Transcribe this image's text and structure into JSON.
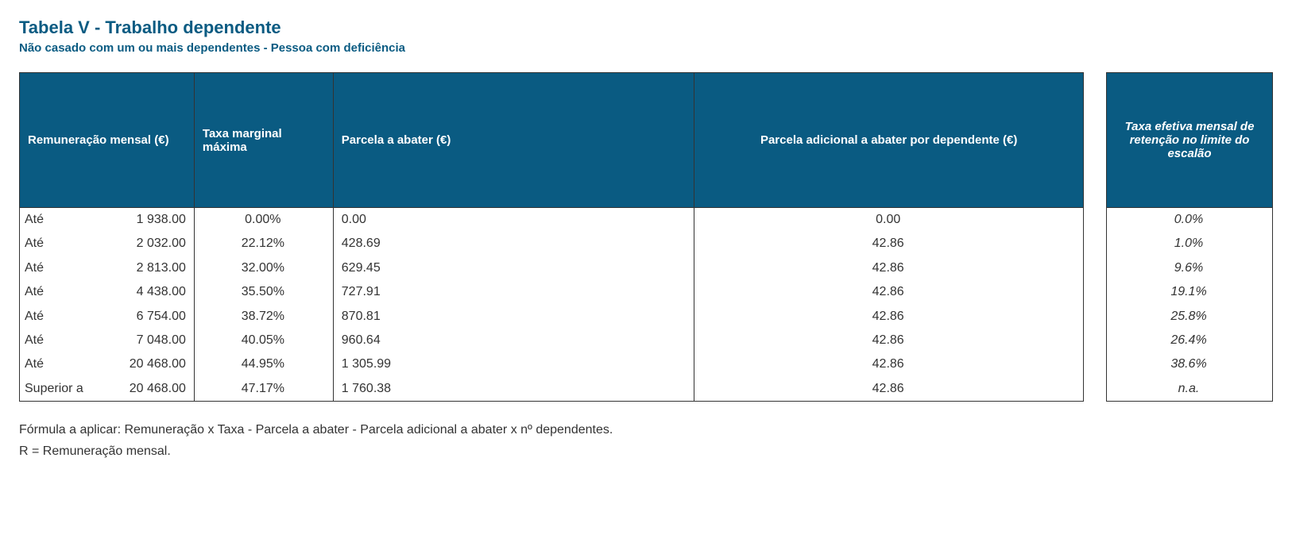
{
  "colors": {
    "accent": "#0a5b82",
    "text": "#333333",
    "border": "#333333",
    "header_text": "#ffffff",
    "background": "#ffffff"
  },
  "title": "Tabela V - Trabalho dependente",
  "subtitle": "Não casado com um ou mais dependentes - Pessoa com deficiência",
  "columns": {
    "remuneration": "Remuneração mensal (€)",
    "marginal_rate": "Taxa marginal máxima",
    "deduction": "Parcela a abater (€)",
    "dependent_deduction": "Parcela adicional a abater por dependente (€)",
    "effective_rate": "Taxa efetiva mensal de retenção no limite do escalão"
  },
  "rows": [
    {
      "label": "Até",
      "amount": "1 938.00",
      "rate": "0.00%",
      "parcel": "0.00",
      "dep": "0.00",
      "eff": "0.0%"
    },
    {
      "label": "Até",
      "amount": "2 032.00",
      "rate": "22.12%",
      "parcel": "428.69",
      "dep": "42.86",
      "eff": "1.0%"
    },
    {
      "label": "Até",
      "amount": "2 813.00",
      "rate": "32.00%",
      "parcel": "629.45",
      "dep": "42.86",
      "eff": "9.6%"
    },
    {
      "label": "Até",
      "amount": "4 438.00",
      "rate": "35.50%",
      "parcel": "727.91",
      "dep": "42.86",
      "eff": "19.1%"
    },
    {
      "label": "Até",
      "amount": "6 754.00",
      "rate": "38.72%",
      "parcel": "870.81",
      "dep": "42.86",
      "eff": "25.8%"
    },
    {
      "label": "Até",
      "amount": "7 048.00",
      "rate": "40.05%",
      "parcel": "960.64",
      "dep": "42.86",
      "eff": "26.4%"
    },
    {
      "label": "Até",
      "amount": "20 468.00",
      "rate": "44.95%",
      "parcel": "1 305.99",
      "dep": "42.86",
      "eff": "38.6%"
    },
    {
      "label": "Superior a",
      "amount": "20 468.00",
      "rate": "47.17%",
      "parcel": "1 760.38",
      "dep": "42.86",
      "eff": "n.a."
    }
  ],
  "footnotes": {
    "formula": "Fórmula a aplicar: Remuneração x Taxa - Parcela a abater - Parcela adicional a abater x nº dependentes.",
    "r_def": "R = Remuneração mensal."
  }
}
